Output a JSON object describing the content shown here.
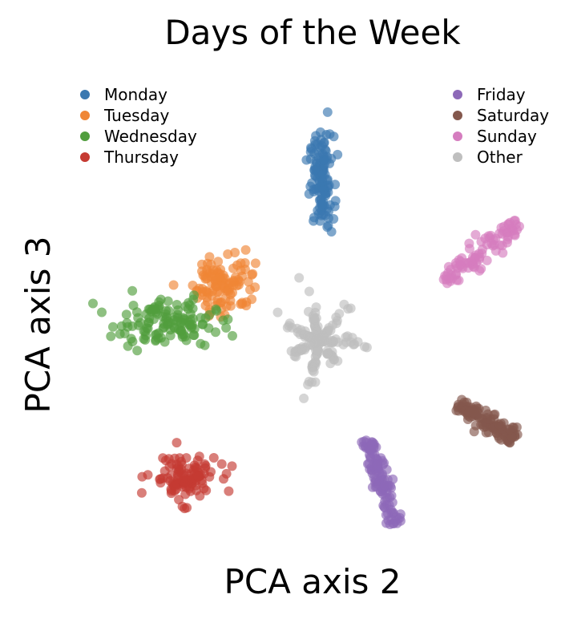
{
  "chart_data": {
    "type": "scatter",
    "title": "Days of the Week",
    "xlabel": "PCA axis 2",
    "ylabel": "PCA axis 3",
    "xlim": [
      -1,
      1
    ],
    "ylim": [
      -1,
      1
    ],
    "grid": false,
    "axes_visible": false,
    "legend": [
      {
        "position": "top-left",
        "entries": [
          "Monday",
          "Tuesday",
          "Wednesday",
          "Thursday"
        ]
      },
      {
        "position": "top-right",
        "entries": [
          "Friday",
          "Saturday",
          "Sunday",
          "Other"
        ]
      }
    ],
    "series": [
      {
        "name": "Monday",
        "color": "#3a78b0",
        "shape": "cluster",
        "center": [
          0.03,
          0.6
        ],
        "spread": [
          0.05,
          0.2
        ],
        "count": 120
      },
      {
        "name": "Tuesday",
        "color": "#ef8636",
        "shape": "cluster",
        "center": [
          -0.38,
          0.17
        ],
        "spread": [
          0.13,
          0.14
        ],
        "count": 110
      },
      {
        "name": "Wednesday",
        "color": "#519e3e",
        "shape": "cluster",
        "center": [
          -0.63,
          0.0
        ],
        "spread": [
          0.22,
          0.1
        ],
        "count": 130
      },
      {
        "name": "Thursday",
        "color": "#c53a32",
        "shape": "cluster",
        "center": [
          -0.55,
          -0.66
        ],
        "spread": [
          0.14,
          0.1
        ],
        "count": 110
      },
      {
        "name": "Friday",
        "color": "#8d69b8",
        "shape": "streak",
        "from": [
          0.22,
          -0.5
        ],
        "to": [
          0.34,
          -0.86
        ],
        "width": 0.04,
        "count": 120
      },
      {
        "name": "Saturday",
        "color": "#84584d",
        "shape": "streak",
        "from": [
          0.6,
          -0.35
        ],
        "to": [
          0.84,
          -0.5
        ],
        "width": 0.04,
        "count": 120
      },
      {
        "name": "Sunday",
        "color": "#d57dbf",
        "shape": "streak",
        "from": [
          0.54,
          0.17
        ],
        "to": [
          0.86,
          0.42
        ],
        "width": 0.05,
        "count": 90
      },
      {
        "name": "Other",
        "color": "#bfbfbf",
        "shape": "star",
        "center": [
          0.02,
          -0.08
        ],
        "radius": 0.1,
        "count": 170
      }
    ]
  }
}
